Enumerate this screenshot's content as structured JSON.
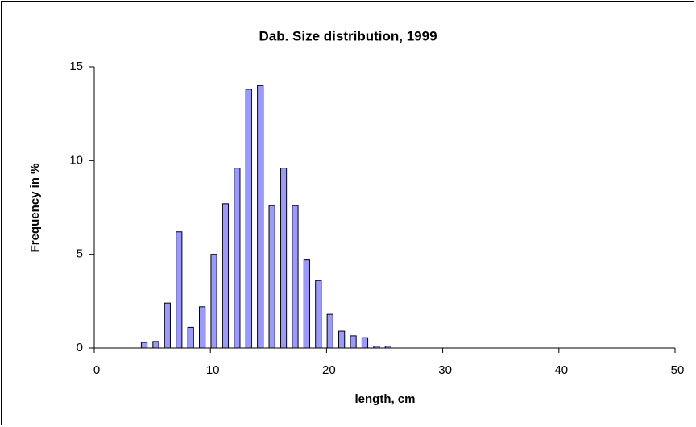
{
  "chart_data": {
    "type": "bar",
    "title": "Dab. Size distribution, 1999",
    "xlabel": "length, cm",
    "ylabel": "Frequency in %",
    "x": [
      4,
      5,
      6,
      7,
      8,
      9,
      10,
      11,
      12,
      13,
      14,
      15,
      16,
      17,
      18,
      19,
      20,
      21,
      22,
      23,
      24,
      25
    ],
    "values": [
      0.3,
      0.35,
      2.4,
      6.2,
      1.1,
      2.2,
      5.0,
      7.7,
      9.6,
      13.8,
      14.0,
      7.6,
      9.6,
      7.6,
      4.7,
      3.6,
      1.8,
      0.9,
      0.65,
      0.55,
      0.1,
      0.1
    ],
    "color": "#9999ff",
    "xlim": [
      0,
      50
    ],
    "xticks": [
      0,
      10,
      20,
      30,
      40,
      50
    ],
    "ylim": [
      0,
      15
    ],
    "yticks": [
      0,
      5,
      10,
      15
    ],
    "grid": false
  }
}
